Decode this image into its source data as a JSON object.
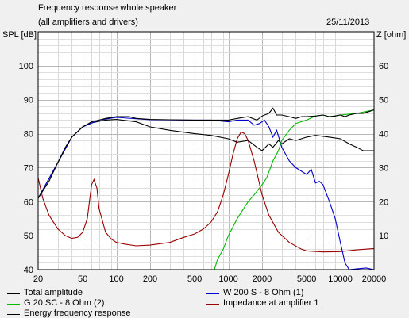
{
  "header": {
    "title": "Frequency response whole speaker",
    "subtitle": "(all amplifiers and drivers)",
    "date": "25/11/2013"
  },
  "chart_data": {
    "type": "line",
    "xlabel": "",
    "ylabel_left": "SPL [dB]",
    "ylabel_right": "Z [ohm]",
    "x_scale": "log",
    "xlim": [
      20,
      20000
    ],
    "ylim_left": [
      40,
      110
    ],
    "ylim_right": [
      0,
      70
    ],
    "x_ticks": [
      20,
      50,
      100,
      200,
      500,
      1000,
      2000,
      5000,
      10000,
      20000
    ],
    "x_tick_labels": [
      "20",
      "50",
      "100",
      "200",
      "500",
      "1000",
      "2000",
      "5000",
      "10000",
      "20000"
    ],
    "y_ticks_left": [
      40,
      50,
      60,
      70,
      80,
      90,
      100
    ],
    "y_ticks_right": [
      10,
      20,
      30,
      40,
      50,
      60
    ],
    "grid": true,
    "legend_position": "bottom",
    "series": [
      {
        "name": "Total amplitude",
        "color": "#000000",
        "axis": "left",
        "points": [
          [
            20,
            61
          ],
          [
            25,
            66
          ],
          [
            30,
            71.5
          ],
          [
            35,
            76
          ],
          [
            40,
            79
          ],
          [
            50,
            82
          ],
          [
            60,
            83.5
          ],
          [
            70,
            84
          ],
          [
            80,
            84.5
          ],
          [
            100,
            85
          ],
          [
            130,
            85
          ],
          [
            150,
            84.5
          ],
          [
            200,
            84.2
          ],
          [
            300,
            84.1
          ],
          [
            500,
            84
          ],
          [
            700,
            84
          ],
          [
            1000,
            84
          ],
          [
            1200,
            84.5
          ],
          [
            1500,
            85
          ],
          [
            1800,
            84
          ],
          [
            2000,
            85.2
          ],
          [
            2300,
            86
          ],
          [
            2500,
            87.5
          ],
          [
            2700,
            85.5
          ],
          [
            3000,
            85.5
          ],
          [
            3500,
            85
          ],
          [
            4000,
            84.5
          ],
          [
            4500,
            85
          ],
          [
            5000,
            85
          ],
          [
            6000,
            85.2
          ],
          [
            7000,
            85.5
          ],
          [
            8000,
            85
          ],
          [
            9000,
            85.2
          ],
          [
            10000,
            85.5
          ],
          [
            11000,
            85
          ],
          [
            12000,
            85.5
          ],
          [
            14000,
            86
          ],
          [
            16000,
            86
          ],
          [
            18000,
            86.5
          ],
          [
            20000,
            87
          ]
        ]
      },
      {
        "name": "W 200 S - 8 Ohm (1)",
        "color": "#0000cc",
        "axis": "left",
        "points": [
          [
            20,
            61
          ],
          [
            30,
            71.5
          ],
          [
            40,
            79
          ],
          [
            50,
            82
          ],
          [
            70,
            84
          ],
          [
            100,
            84.8
          ],
          [
            200,
            84.1
          ],
          [
            500,
            84
          ],
          [
            700,
            84
          ],
          [
            1000,
            83.5
          ],
          [
            1200,
            84
          ],
          [
            1500,
            84
          ],
          [
            1700,
            82.5
          ],
          [
            1900,
            83
          ],
          [
            2100,
            84
          ],
          [
            2300,
            82
          ],
          [
            2500,
            79
          ],
          [
            2700,
            81
          ],
          [
            3000,
            76
          ],
          [
            3500,
            72
          ],
          [
            4000,
            70
          ],
          [
            5000,
            68
          ],
          [
            5500,
            69.5
          ],
          [
            6000,
            65.5
          ],
          [
            6500,
            66
          ],
          [
            7000,
            65
          ],
          [
            8000,
            60
          ],
          [
            9000,
            55
          ],
          [
            10000,
            48
          ],
          [
            11000,
            42
          ],
          [
            12000,
            40
          ],
          [
            14000,
            40.2
          ],
          [
            17000,
            40.5
          ],
          [
            20000,
            40
          ]
        ]
      },
      {
        "name": "G 20 SC - 8 Ohm (2)",
        "color": "#00bb00",
        "axis": "left",
        "points": [
          [
            750,
            40
          ],
          [
            800,
            43
          ],
          [
            900,
            46
          ],
          [
            1000,
            50
          ],
          [
            1200,
            55
          ],
          [
            1500,
            60
          ],
          [
            1700,
            62
          ],
          [
            2000,
            65
          ],
          [
            2200,
            67
          ],
          [
            2500,
            72
          ],
          [
            2800,
            75
          ],
          [
            3000,
            78
          ],
          [
            3500,
            81
          ],
          [
            4000,
            83
          ],
          [
            5000,
            84
          ],
          [
            6000,
            85.2
          ],
          [
            7000,
            85.5
          ],
          [
            8000,
            85
          ],
          [
            10000,
            85.5
          ],
          [
            14000,
            86
          ],
          [
            20000,
            87
          ]
        ]
      },
      {
        "name": "Impedance at amplifier 1",
        "color": "#990000",
        "axis": "right",
        "points": [
          [
            20,
            27
          ],
          [
            22,
            21
          ],
          [
            25,
            16
          ],
          [
            30,
            12
          ],
          [
            35,
            10
          ],
          [
            40,
            9.2
          ],
          [
            45,
            9.5
          ],
          [
            50,
            11
          ],
          [
            55,
            15
          ],
          [
            60,
            25
          ],
          [
            63,
            26.5
          ],
          [
            67,
            24
          ],
          [
            70,
            18
          ],
          [
            80,
            11
          ],
          [
            90,
            9
          ],
          [
            100,
            8
          ],
          [
            120,
            7.5
          ],
          [
            150,
            7
          ],
          [
            200,
            7.2
          ],
          [
            300,
            8
          ],
          [
            400,
            9.5
          ],
          [
            500,
            10.5
          ],
          [
            600,
            12
          ],
          [
            700,
            14
          ],
          [
            800,
            17
          ],
          [
            900,
            22
          ],
          [
            1000,
            28
          ],
          [
            1100,
            34
          ],
          [
            1200,
            38.5
          ],
          [
            1300,
            40.5
          ],
          [
            1400,
            40
          ],
          [
            1500,
            38
          ],
          [
            1700,
            32
          ],
          [
            2000,
            22
          ],
          [
            2300,
            16
          ],
          [
            2800,
            11
          ],
          [
            3500,
            8
          ],
          [
            4500,
            6
          ],
          [
            5000,
            5.5
          ],
          [
            7000,
            5.2
          ],
          [
            10000,
            5.3
          ],
          [
            14000,
            5.8
          ],
          [
            20000,
            6.2
          ]
        ]
      },
      {
        "name": "Energy frequency response",
        "color": "#000000",
        "axis": "left",
        "points": [
          [
            20,
            61
          ],
          [
            30,
            71.5
          ],
          [
            40,
            79
          ],
          [
            50,
            82
          ],
          [
            60,
            83.2
          ],
          [
            80,
            84
          ],
          [
            100,
            84.2
          ],
          [
            150,
            83.5
          ],
          [
            200,
            82
          ],
          [
            300,
            81
          ],
          [
            500,
            80
          ],
          [
            700,
            79.5
          ],
          [
            1000,
            78.5
          ],
          [
            1200,
            77.5
          ],
          [
            1500,
            78
          ],
          [
            1800,
            76
          ],
          [
            2000,
            75
          ],
          [
            2300,
            77
          ],
          [
            2500,
            76
          ],
          [
            2800,
            78
          ],
          [
            3000,
            77
          ],
          [
            3500,
            78.5
          ],
          [
            4000,
            78
          ],
          [
            5000,
            79
          ],
          [
            6000,
            79.5
          ],
          [
            8000,
            79
          ],
          [
            10000,
            78.5
          ],
          [
            12000,
            77
          ],
          [
            14000,
            76
          ],
          [
            16000,
            75
          ],
          [
            20000,
            75
          ]
        ]
      }
    ]
  }
}
